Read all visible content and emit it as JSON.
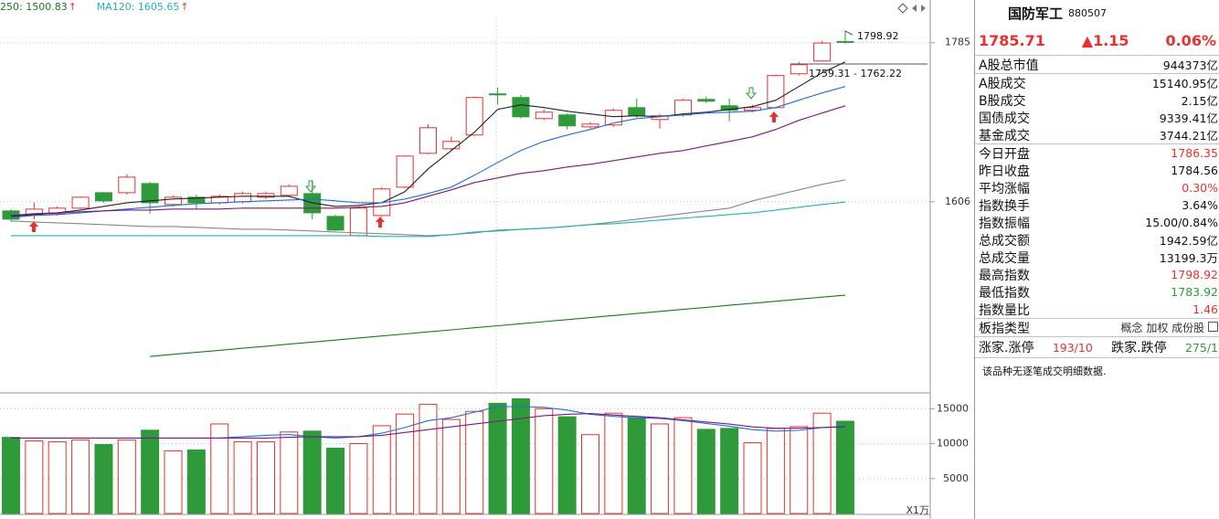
{
  "chart_data": [
    {
      "type": "candlestick",
      "legend": [
        {
          "label": "250: 1500.83",
          "mark": "↑",
          "color": "#1a7a1a"
        },
        {
          "label": "MA120: 1605.65",
          "mark": "↑",
          "color": "#1fb3b3"
        }
      ],
      "up_color": "#e8312f",
      "down_color": "#2f9a3a",
      "mark_color": "#e8312f",
      "open": [
        1595.7,
        1591.6,
        1592.6,
        1598.8,
        1616.2,
        1616.2,
        1626.5,
        1602.9,
        1611.1,
        1604.9,
        1606.0,
        1611.1,
        1613.2,
        1615.2,
        1589.5,
        1567.9,
        1590.5,
        1622.4,
        1660.5,
        1665.6,
        1681.1,
        1727.4,
        1723.3,
        1699.6,
        1703.7,
        1690.3,
        1692.4,
        1711.9,
        1698.6,
        1703.7,
        1721.2,
        1714.0,
        1708.9,
        1711.9,
        1750.0,
        1764.4,
        1786.35
      ],
      "high": [
        1597.7,
        1604.9,
        1600.8,
        1612.2,
        1617.3,
        1636.8,
        1628.5,
        1613.2,
        1614.2,
        1614.2,
        1617.3,
        1617.3,
        1625.5,
        1629.6,
        1591.6,
        1600.8,
        1622.4,
        1658.4,
        1693.4,
        1679.1,
        1724.3,
        1734.6,
        1726.3,
        1709.9,
        1705.8,
        1695.5,
        1711.0,
        1722.2,
        1704.8,
        1722.2,
        1724.3,
        1722.2,
        1715.0,
        1749.0,
        1763.4,
        1787.1,
        1798.92
      ],
      "low": [
        1583.3,
        1586.4,
        1590.5,
        1597.7,
        1605.0,
        1614.0,
        1592.6,
        1600.8,
        1597.7,
        1602.9,
        1603.9,
        1609.1,
        1611.1,
        1586.4,
        1573.1,
        1566.9,
        1589.5,
        1621.4,
        1659.5,
        1663.6,
        1680.1,
        1715.0,
        1699.6,
        1697.6,
        1687.3,
        1688.3,
        1690.3,
        1700.6,
        1688.3,
        1701.6,
        1717.1,
        1696.5,
        1706.8,
        1710.9,
        1748.0,
        1763.4,
        1783.92
      ],
      "close": [
        1586.4,
        1597.7,
        1598.8,
        1611.1,
        1607.0,
        1633.7,
        1604.9,
        1611.1,
        1604.9,
        1612.1,
        1615.2,
        1615.2,
        1623.4,
        1593.6,
        1574.1,
        1598.8,
        1620.4,
        1657.4,
        1689.3,
        1673.9,
        1723.3,
        1726.3,
        1701.6,
        1706.8,
        1691.4,
        1693.4,
        1708.9,
        1702.7,
        1702.7,
        1720.2,
        1719.1,
        1708.9,
        1711.9,
        1748.0,
        1760.3,
        1784.56,
        1785.71
      ],
      "series": [
        {
          "color": "#222222",
          "values": [
            1589.5,
            1591.6,
            1593.6,
            1596.7,
            1600.8,
            1604.9,
            1607.0,
            1609.1,
            1610.1,
            1611.1,
            1612.2,
            1612.2,
            1612.2,
            1604.9,
            1600.8,
            1601.9,
            1604.9,
            1617.3,
            1643.0,
            1663.6,
            1684.2,
            1709.9,
            1715.1,
            1712.0,
            1707.9,
            1704.8,
            1701.7,
            1702.7,
            1701.7,
            1704.8,
            1706.8,
            1709.9,
            1713.0,
            1720.2,
            1735.6,
            1751.1,
            1763.4
          ]
        },
        {
          "color": "#1f6fd6",
          "values": [
            1588.5,
            1590.6,
            1591.6,
            1593.6,
            1595.7,
            1597.8,
            1599.8,
            1601.9,
            1603.9,
            1604.9,
            1606.0,
            1607.0,
            1608.0,
            1609.1,
            1607.0,
            1604.9,
            1604.9,
            1609.1,
            1615.3,
            1622.5,
            1635.8,
            1650.2,
            1663.6,
            1673.9,
            1681.1,
            1687.3,
            1694.5,
            1699.6,
            1701.7,
            1703.7,
            1705.8,
            1706.8,
            1707.9,
            1712.0,
            1720.2,
            1728.4,
            1735.6
          ]
        },
        {
          "color": "#7a1a7a",
          "values": [
            1590.6,
            1592.6,
            1593.6,
            1594.7,
            1595.7,
            1596.7,
            1596.7,
            1597.8,
            1597.8,
            1597.8,
            1598.8,
            1598.8,
            1598.8,
            1598.8,
            1598.8,
            1599.8,
            1600.8,
            1604.9,
            1612.2,
            1619.4,
            1627.6,
            1632.8,
            1637.9,
            1641.0,
            1645.1,
            1648.2,
            1652.3,
            1656.4,
            1660.5,
            1663.6,
            1668.8,
            1673.9,
            1679.1,
            1687.3,
            1697.6,
            1705.8,
            1714.0
          ]
        },
        {
          "color": "#888888",
          "values": [
            1584.4,
            1583.3,
            1582.3,
            1581.3,
            1580.3,
            1579.2,
            1578.2,
            1578.2,
            1577.2,
            1576.2,
            1575.1,
            1575.1,
            1574.1,
            1573.1,
            1572.0,
            1571.0,
            1570.0,
            1569.0,
            1567.9,
            1569.0,
            1571.0,
            1574.1,
            1575.1,
            1576.2,
            1578.2,
            1580.3,
            1583.3,
            1586.4,
            1589.5,
            1592.6,
            1595.7,
            1598.8,
            1607.0,
            1613.2,
            1619.4,
            1625.5,
            1630.7
          ]
        },
        {
          "color": "#1fb3b3",
          "values": [
            1567.9,
            1567.9,
            1567.9,
            1567.9,
            1567.9,
            1567.9,
            1567.9,
            1567.9,
            1567.9,
            1567.9,
            1567.9,
            1567.9,
            1567.9,
            1567.9,
            1567.9,
            1567.9,
            1566.9,
            1566.9,
            1566.9,
            1569.0,
            1572.0,
            1573.1,
            1575.1,
            1576.2,
            1578.2,
            1580.3,
            1581.3,
            1583.3,
            1585.4,
            1587.5,
            1589.5,
            1591.6,
            1593.6,
            1596.7,
            1599.8,
            1602.9,
            1605.65
          ]
        },
        {
          "color": "#1a7a1a",
          "values": [
            null,
            null,
            null,
            null,
            null,
            null,
            1432.0,
            1434.3,
            1436.6,
            1438.9,
            1441.2,
            1443.5,
            1445.8,
            1448.1,
            1450.4,
            1452.7,
            1455.0,
            1457.3,
            1459.6,
            1461.9,
            1464.2,
            1466.5,
            1468.8,
            1471.1,
            1473.4,
            1475.7,
            1478.0,
            1480.3,
            1482.6,
            1484.9,
            1487.2,
            1489.5,
            1491.8,
            1494.1,
            1496.4,
            1498.7,
            1500.83
          ]
        }
      ],
      "annotations": [
        "1798.92",
        "1759.31 - 1762.22"
      ],
      "ylim": [
        1393,
        1833
      ],
      "yticks": [
        1606,
        1785
      ],
      "grid": true
    },
    {
      "type": "bar",
      "unit": "X1万",
      "values": [
        10897,
        10385,
        10256,
        10513,
        9872,
        10513,
        11923,
        8974,
        9103,
        12821,
        10256,
        10256,
        11667,
        11795,
        9359,
        10000,
        12564,
        14231,
        15641,
        13462,
        14615,
        15769,
        16410,
        15000,
        13846,
        11282,
        14359,
        13718,
        12821,
        13718,
        12051,
        12179,
        10128,
        12179,
        12436,
        14359,
        13205
      ],
      "series": [
        {
          "color": "#1f6fd6",
          "values": [
            10800,
            10800,
            10800,
            10800,
            10800,
            10800,
            10800,
            10800,
            10800,
            10800,
            11000,
            11200,
            11300,
            11000,
            10800,
            11000,
            11500,
            12300,
            13300,
            13700,
            14500,
            15300,
            15300,
            15200,
            14800,
            14200,
            13900,
            13700,
            13600,
            13300,
            12900,
            12500,
            12000,
            11800,
            11900,
            12300,
            12500
          ]
        },
        {
          "color": "#7a1a7a",
          "values": [
            10800,
            10800,
            10800,
            10800,
            10800,
            10800,
            10800,
            10800,
            10800,
            10800,
            10800,
            10800,
            10900,
            11000,
            11000,
            11000,
            11200,
            11600,
            12000,
            12400,
            12800,
            13200,
            13600,
            14000,
            14200,
            14300,
            14100,
            13900,
            13700,
            13400,
            13100,
            12800,
            12400,
            12200,
            12200,
            12300,
            12400
          ]
        }
      ],
      "ylim": [
        0,
        17000
      ],
      "yticks": [
        5000,
        10000,
        15000
      ],
      "grid": true
    }
  ],
  "panel": {
    "name": "国防军工",
    "code": "880507",
    "price": "1785.71",
    "change": "▲1.15",
    "pct": "0.06%",
    "rows": [
      [
        "A股总市值",
        "944373亿"
      ],
      [
        "A股成交",
        "15140.95亿"
      ],
      [
        "B股成交",
        "2.15亿"
      ],
      [
        "国债成交",
        "9339.41亿"
      ],
      [
        "基金成交",
        "3744.21亿"
      ],
      [
        "今日开盘",
        "1786.35"
      ],
      [
        "昨日收盘",
        "1784.56"
      ],
      [
        "平均涨幅",
        "0.30%"
      ],
      [
        "指数换手",
        "3.64%"
      ],
      [
        "指数振幅",
        "15.00/0.84%"
      ],
      [
        "总成交额",
        "1942.59亿"
      ],
      [
        "总成交量",
        "13199.3万"
      ],
      [
        "最高指数",
        "1798.92"
      ],
      [
        "最低指数",
        "1783.92"
      ],
      [
        "指数量比",
        "1.46"
      ]
    ],
    "type_label": "板指类型",
    "type_options": [
      "概念",
      "加权",
      "成份股"
    ],
    "breadth": [
      "涨家.涨停",
      "193/10",
      "跌家.跌停",
      "275/1"
    ],
    "note": "该品种无逐笔成交明细数据."
  }
}
